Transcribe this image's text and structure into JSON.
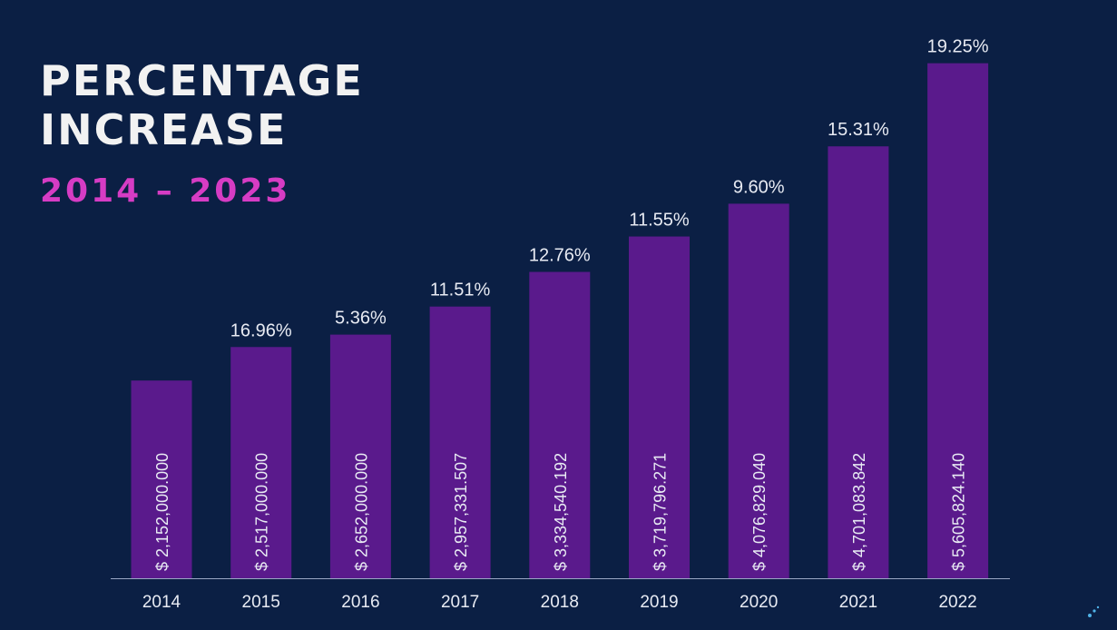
{
  "heading": {
    "line1": "PERCENTAGE",
    "line2": "INCREASE",
    "subtitle": "2014 – 2023"
  },
  "colors": {
    "background": "#0b1f44",
    "bar": "#5a1a8c",
    "heading": "#f2f2f2",
    "subtitle": "#d63cc4",
    "axis": "#9aa7c4"
  },
  "chart_data": {
    "type": "bar",
    "categories": [
      "2014",
      "2015",
      "2016",
      "2017",
      "2018",
      "2019",
      "2020",
      "2021",
      "2022"
    ],
    "values": [
      2152000000,
      2517000000,
      2652000000,
      2957331507,
      3334540192,
      3719796271,
      4076829040,
      4701083842,
      5605824140
    ],
    "value_labels": [
      "$ 2,152,000.000",
      "$ 2,517,000.000",
      "$ 2,652,000.000",
      "$ 2,957,331.507",
      "$ 3,334,540.192",
      "$ 3,719,796.271",
      "$ 4,076,829.040",
      "$ 4,701,083.842",
      "$ 5,605,824.140"
    ],
    "percent_labels": [
      "",
      "16.96%",
      "5.36%",
      "11.51%",
      "12.76%",
      "11.55%",
      "9.60%",
      "15.31%",
      "19.25%"
    ],
    "ylim": [
      0,
      5800000000
    ],
    "grid": false,
    "legend": "none"
  }
}
